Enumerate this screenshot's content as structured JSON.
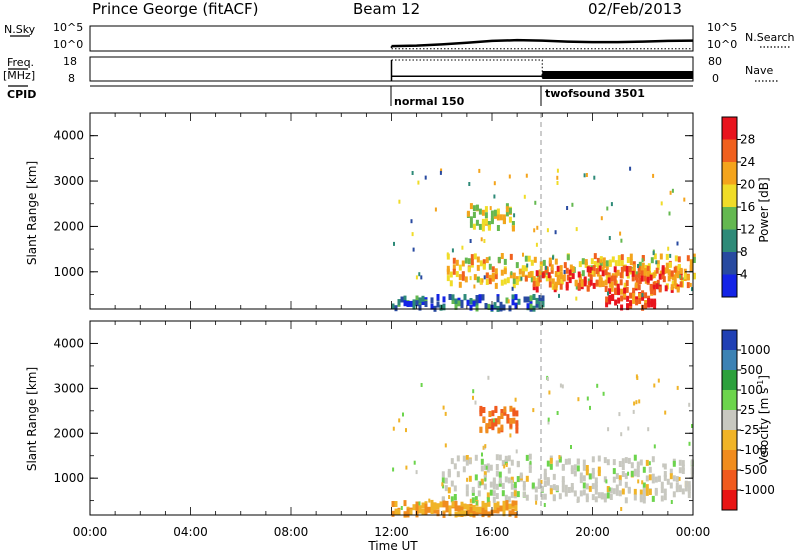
{
  "header": {
    "station": "Prince George (fitACF)",
    "beam": "Beam 12",
    "date": "02/Feb/2013"
  },
  "top_panels": {
    "nsky_label": "N.Sky",
    "nsky_ticks": [
      "10^5",
      "10^0"
    ],
    "nsky_right_ticks": [
      "10^5",
      "10^0"
    ],
    "nsearch_label": "N.Search",
    "freq_label": "Freq.",
    "freq_unit": "[MHz]",
    "freq_ticks": [
      "18",
      "8"
    ],
    "nave_ticks": [
      "80",
      "0"
    ],
    "nave_label": "Nave",
    "cpid_label": "CPID",
    "cpid_segments": [
      "normal 150",
      "twofsound 3501"
    ]
  },
  "axes": {
    "x_ticks": [
      "00:00",
      "04:00",
      "08:00",
      "12:00",
      "16:00",
      "20:00",
      "00:00"
    ],
    "x_label": "Time UT",
    "y_label": "Slant Range [km]",
    "y_ticks": [
      "4000",
      "3000",
      "2000",
      "1000"
    ]
  },
  "power_scale": {
    "label": "Power [dB]",
    "ticks": [
      "28",
      "24",
      "20",
      "16",
      "12",
      "8",
      "4"
    ],
    "colors": [
      "#e8141e",
      "#f0601e",
      "#f4a41c",
      "#f0dc28",
      "#64b850",
      "#2e8a78",
      "#284aa0",
      "#1424e6"
    ]
  },
  "velocity_scale": {
    "label": "Velocity [m s",
    "label_sup": "-1",
    "label_close": "]",
    "ticks": [
      "1000",
      "500",
      "100",
      "25",
      "-25",
      "-100",
      "-500",
      "-1000"
    ],
    "colors": [
      "#2040b4",
      "#3c82b4",
      "#2ca03c",
      "#6cd44c",
      "#c8c8c0",
      "#f0b428",
      "#f08c1e",
      "#f05a1e",
      "#e81414"
    ]
  },
  "chart_data": [
    {
      "type": "line",
      "title": "N.Sky / N.Search",
      "x_range_hours": [
        0,
        24
      ],
      "ylabel": "N.Sky",
      "scale": "log",
      "series": [
        {
          "name": "N.Sky",
          "x": [
            12,
            13,
            14,
            15,
            16,
            17,
            18,
            19,
            20,
            21,
            22,
            23,
            24
          ],
          "y": [
            3,
            4,
            8,
            20,
            60,
            90,
            70,
            40,
            30,
            30,
            40,
            60,
            70
          ]
        },
        {
          "name": "N.Search",
          "x": [
            12,
            24
          ],
          "y": [
            2,
            2
          ]
        }
      ]
    },
    {
      "type": "line",
      "title": "Freq. / Nave",
      "x_range_hours": [
        0,
        24
      ],
      "ylim_freq": [
        8,
        18
      ],
      "ylim_nave": [
        0,
        80
      ],
      "series": [
        {
          "name": "Freq.",
          "x": [
            12,
            18,
            18,
            24
          ],
          "y": [
            10,
            10,
            10.5,
            10.5
          ]
        },
        {
          "name": "Nave",
          "x": [
            12,
            18
          ],
          "y": [
            70,
            70
          ]
        }
      ]
    },
    {
      "type": "heatmap",
      "quantity": "Power [dB]",
      "x_range_hours": [
        0,
        24
      ],
      "ylim": [
        180,
        4500
      ],
      "data_start_hour": 12,
      "mode_change_hour": 18,
      "bands": [
        {
          "t0": 14.2,
          "t1": 24.0,
          "r_center": 1000,
          "r_width": 350,
          "level_db": 20
        },
        {
          "t0": 17.5,
          "t1": 23.5,
          "r_center": 850,
          "r_width": 250,
          "level_db": 26
        },
        {
          "t0": 20.5,
          "t1": 22.5,
          "r_center": 400,
          "r_width": 200,
          "level_db": 28
        },
        {
          "t0": 15.0,
          "t1": 16.8,
          "r_center": 2200,
          "r_width": 250,
          "level_db": 18
        },
        {
          "t0": 12.0,
          "t1": 18.0,
          "r_center": 250,
          "r_width": 200,
          "level_db": 8
        }
      ]
    },
    {
      "type": "heatmap",
      "quantity": "Velocity [m s-1]",
      "x_range_hours": [
        0,
        24
      ],
      "ylim": [
        180,
        4500
      ],
      "data_start_hour": 12,
      "mode_change_hour": 18,
      "bands": [
        {
          "t0": 14.0,
          "t1": 24.0,
          "r_center": 1000,
          "r_width": 500,
          "velocity": 0
        },
        {
          "t0": 15.5,
          "t1": 17.0,
          "r_center": 2300,
          "r_width": 250,
          "velocity": -500
        },
        {
          "t0": 12.0,
          "t1": 17.0,
          "r_center": 250,
          "r_width": 200,
          "velocity": -100
        }
      ]
    }
  ]
}
